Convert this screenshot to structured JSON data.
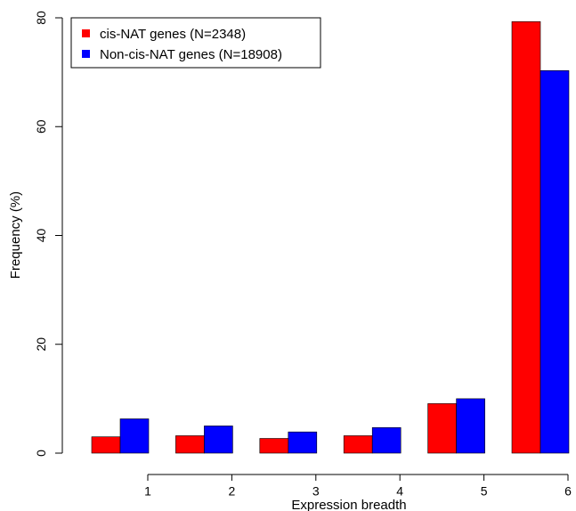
{
  "chart_data": {
    "type": "bar",
    "title": "",
    "xlabel": "Expression breadth",
    "ylabel": "Frequency (%)",
    "categories": [
      "1",
      "2",
      "3",
      "4",
      "5",
      "6"
    ],
    "ylim": [
      0,
      80
    ],
    "yticks": [
      "0",
      "20",
      "40",
      "60",
      "80"
    ],
    "grid": false,
    "legend_position": "top-left",
    "series": [
      {
        "name": "cis-NAT genes (N=2348)",
        "color": "#ff0000",
        "values": [
          3.0,
          3.2,
          2.7,
          3.2,
          9.1,
          79.3
        ]
      },
      {
        "name": "Non-cis-NAT genes (N=18908)",
        "color": "#0000ff",
        "values": [
          6.3,
          5.0,
          3.9,
          4.7,
          10.0,
          70.3
        ]
      }
    ]
  }
}
